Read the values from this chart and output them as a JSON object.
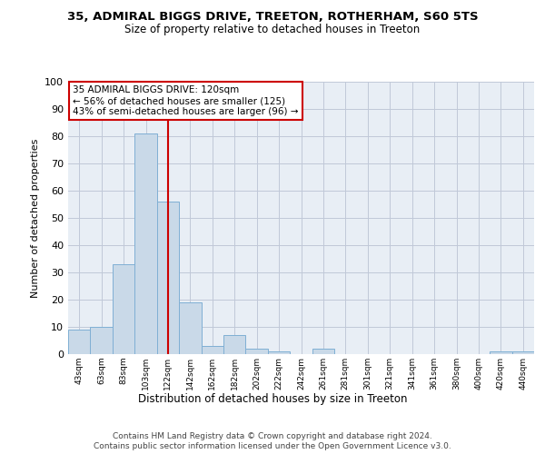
{
  "title1": "35, ADMIRAL BIGGS DRIVE, TREETON, ROTHERHAM, S60 5TS",
  "title2": "Size of property relative to detached houses in Treeton",
  "xlabel": "Distribution of detached houses by size in Treeton",
  "ylabel": "Number of detached properties",
  "bin_labels": [
    "43sqm",
    "63sqm",
    "83sqm",
    "103sqm",
    "122sqm",
    "142sqm",
    "162sqm",
    "182sqm",
    "202sqm",
    "222sqm",
    "242sqm",
    "261sqm",
    "281sqm",
    "301sqm",
    "321sqm",
    "341sqm",
    "361sqm",
    "380sqm",
    "400sqm",
    "420sqm",
    "440sqm"
  ],
  "bar_values": [
    9,
    10,
    33,
    81,
    56,
    19,
    3,
    7,
    2,
    1,
    0,
    2,
    0,
    0,
    0,
    0,
    0,
    0,
    0,
    1,
    1
  ],
  "bar_color": "#c9d9e8",
  "bar_edge_color": "#7fafd4",
  "grid_color": "#c0c8d8",
  "bg_color": "#e8eef5",
  "vline_x": 4,
  "vline_color": "#cc0000",
  "annotation_text": "35 ADMIRAL BIGGS DRIVE: 120sqm\n← 56% of detached houses are smaller (125)\n43% of semi-detached houses are larger (96) →",
  "annotation_box_color": "#ffffff",
  "annotation_box_edge": "#cc0000",
  "footer1": "Contains HM Land Registry data © Crown copyright and database right 2024.",
  "footer2": "Contains public sector information licensed under the Open Government Licence v3.0.",
  "ylim": [
    0,
    100
  ],
  "yticks": [
    0,
    10,
    20,
    30,
    40,
    50,
    60,
    70,
    80,
    90,
    100
  ]
}
